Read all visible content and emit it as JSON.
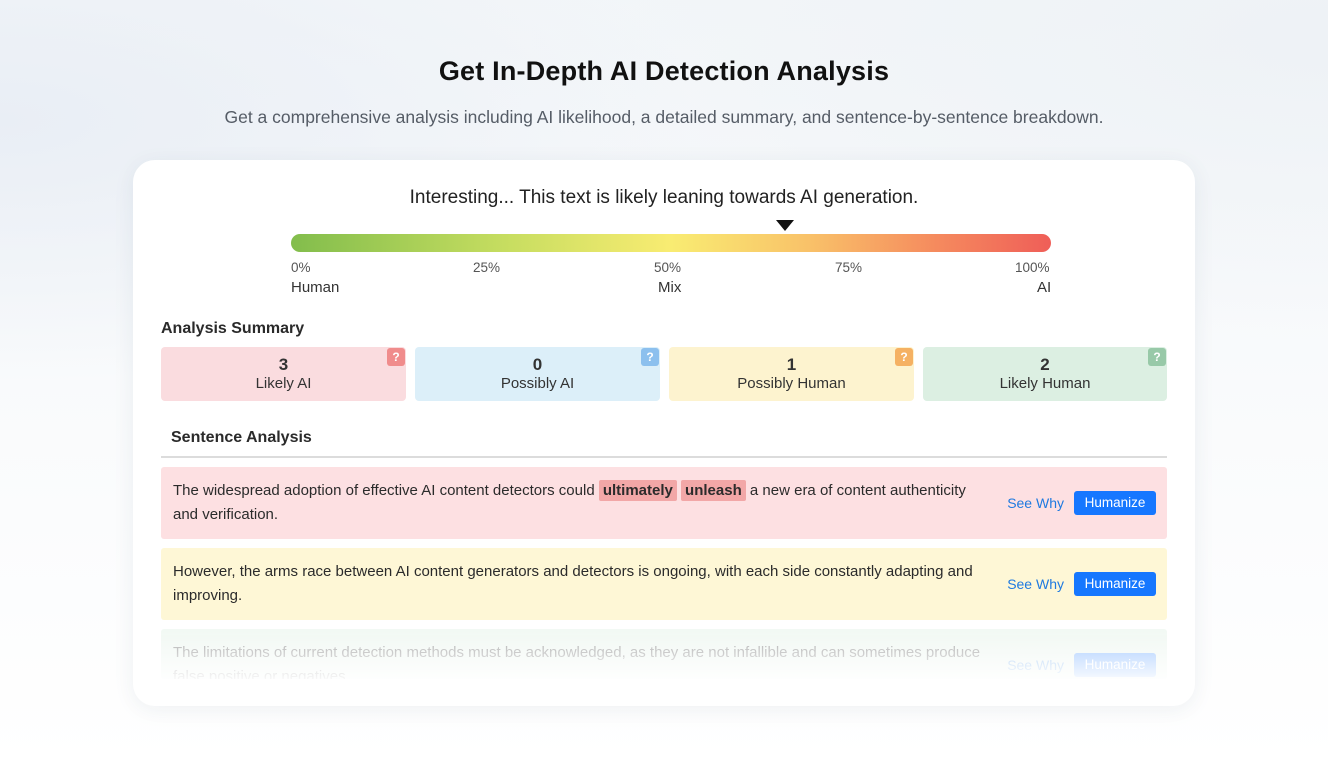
{
  "header": {
    "title": "Get In-Depth AI Detection Analysis",
    "subtitle": "Get a comprehensive analysis including AI likelihood, a detailed summary, and sentence-by-sentence breakdown."
  },
  "result": {
    "verdict": "Interesting... This text is likely leaning towards AI generation.",
    "ai_likelihood_percent": 65,
    "gauge": {
      "ticks": [
        "0%",
        "25%",
        "50%",
        "75%",
        "100%"
      ],
      "labels": [
        "Human",
        "Mix",
        "AI"
      ]
    }
  },
  "summary": {
    "heading": "Analysis Summary",
    "boxes": [
      {
        "count": "3",
        "label": "Likely AI",
        "help": "?",
        "color": "#fadcdf",
        "help_color": "#f08c8c"
      },
      {
        "count": "0",
        "label": "Possibly AI",
        "help": "?",
        "color": "#dceff9",
        "help_color": "#8cc0ee"
      },
      {
        "count": "1",
        "label": "Possibly Human",
        "help": "?",
        "color": "#fdf3cf",
        "help_color": "#f5b163"
      },
      {
        "count": "2",
        "label": "Likely Human",
        "help": "?",
        "color": "#dcefe2",
        "help_color": "#98c9a8"
      }
    ]
  },
  "sentence_analysis": {
    "heading": "Sentence Analysis",
    "see_why_label": "See Why",
    "humanize_label": "Humanize",
    "sentences": [
      {
        "category": "Likely AI",
        "bg_color": "#fde0e2",
        "before": "The widespread adoption of effective AI content detectors could ",
        "highlight_1": "ultimately",
        "highlight_2": "unleash",
        "after": " a new era of content authenticity and verification."
      },
      {
        "category": "Possibly Human",
        "bg_color": "#fef7d6",
        "text": "However, the arms race between AI content generators and detectors is ongoing, with each side constantly adapting and improving."
      },
      {
        "category": "Likely Human",
        "bg_color": "#dff0e4",
        "text": "The limitations of current detection methods must be acknowledged, as they are not infallible and can sometimes produce false positive or negatives."
      }
    ]
  },
  "colors": {
    "accent": "#1677ff",
    "link": "#1f7ae0"
  }
}
